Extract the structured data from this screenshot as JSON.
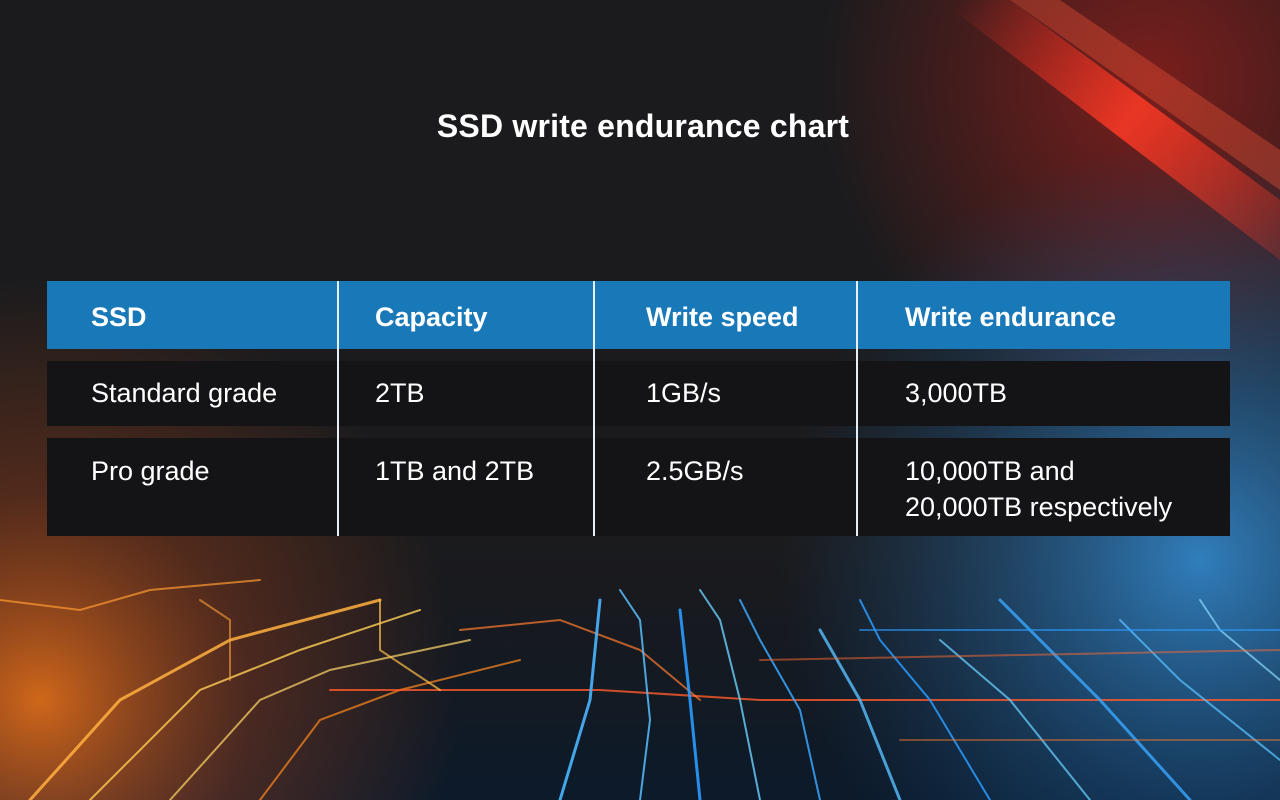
{
  "title": "SSD write endurance chart",
  "chart_data": {
    "type": "table",
    "title": "SSD write endurance chart",
    "columns": [
      "SSD",
      "Capacity",
      "Write speed",
      "Write endurance"
    ],
    "rows": [
      [
        "Standard grade",
        "2TB",
        "1GB/s",
        "3,000TB"
      ],
      [
        "Pro grade",
        "1TB and 2TB",
        "2.5GB/s",
        "10,000TB and 20,000TB respectively"
      ]
    ]
  },
  "table": {
    "header": [
      "SSD",
      "Capacity",
      "Write speed",
      "Write endurance"
    ],
    "rows": [
      [
        "Standard grade",
        "2TB",
        "1GB/s",
        "3,000TB"
      ],
      [
        "Pro grade",
        "1TB and 2TB",
        "2.5GB/s",
        "10,000TB and\n20,000TB respectively"
      ]
    ]
  },
  "colors": {
    "background": "#1b1b1d",
    "header_bg": "#1878b8",
    "row_bg": "#141416",
    "text": "#ffffff",
    "accent_red": "#d8261c",
    "accent_blue": "#2a9bff",
    "accent_orange": "#ff8a1e"
  },
  "background_image": "circuit-board-lights"
}
